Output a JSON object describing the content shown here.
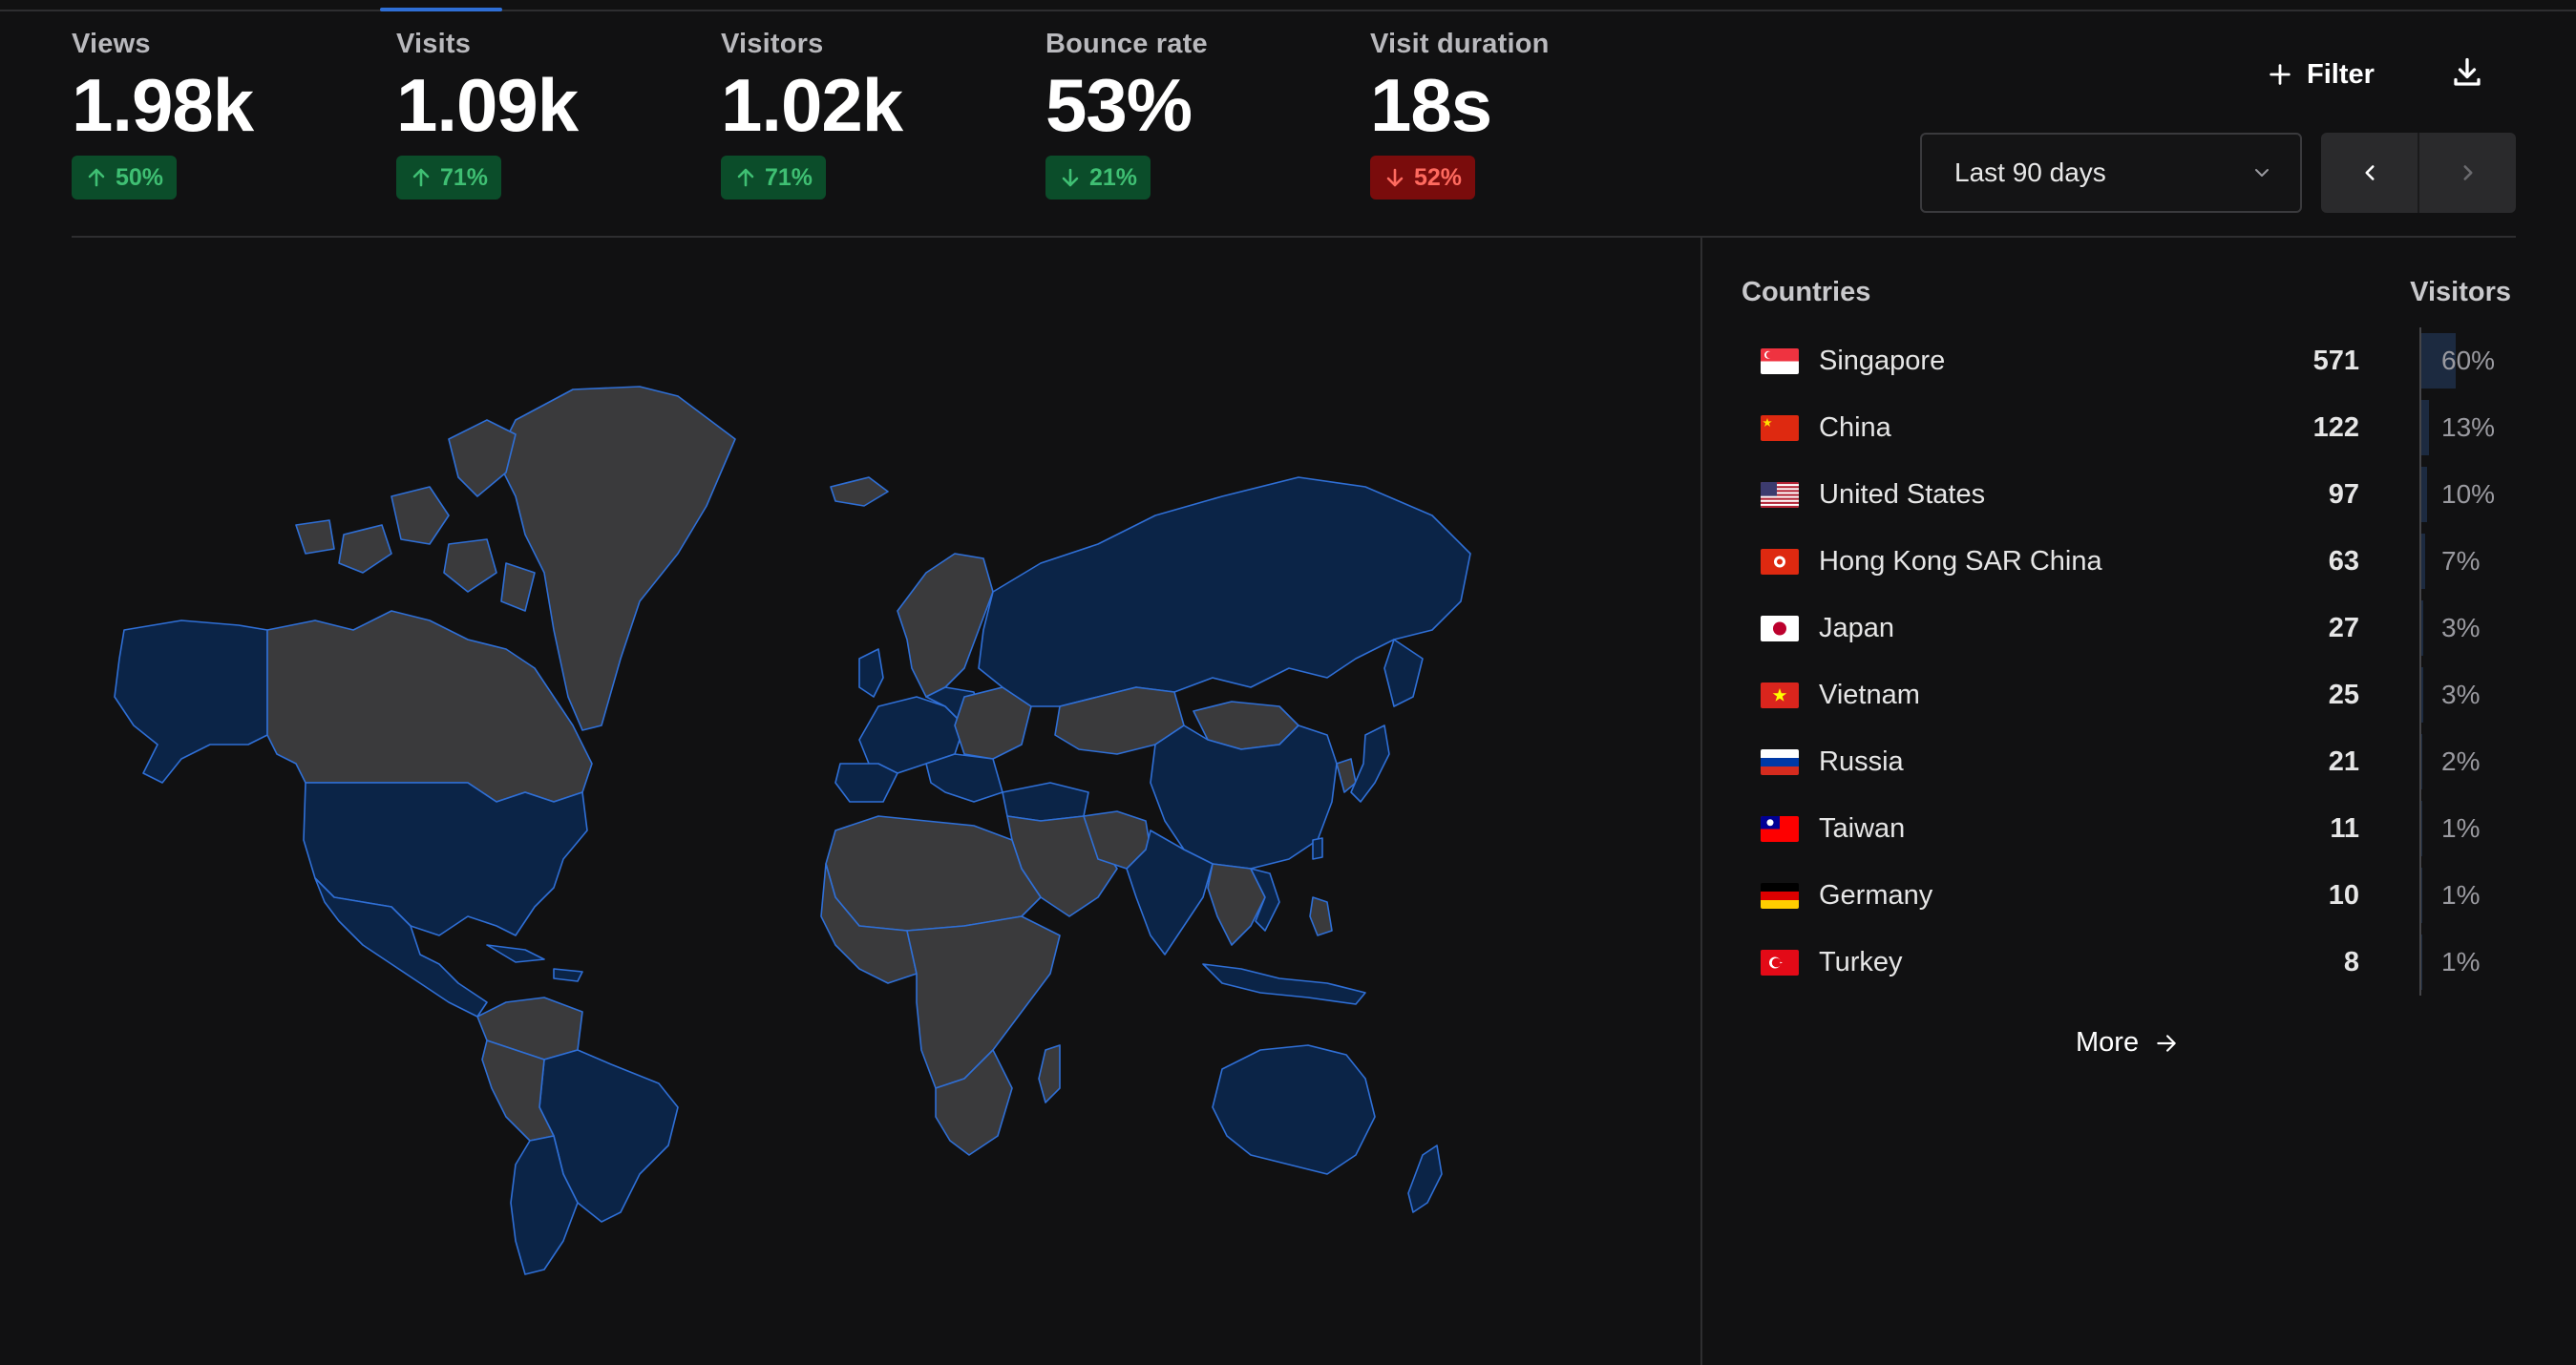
{
  "metrics": [
    {
      "label": "Views",
      "value": "1.98k",
      "change": "50%",
      "direction": "up"
    },
    {
      "label": "Visits",
      "value": "1.09k",
      "change": "71%",
      "direction": "up"
    },
    {
      "label": "Visitors",
      "value": "1.02k",
      "change": "71%",
      "direction": "up"
    },
    {
      "label": "Bounce rate",
      "value": "53%",
      "change": "21%",
      "direction": "down-good"
    },
    {
      "label": "Visit duration",
      "value": "18s",
      "change": "52%",
      "direction": "down-bad"
    }
  ],
  "toolbar": {
    "filter_label": "Filter",
    "date_range": "Last 90 days",
    "download_icon": "download-icon",
    "prev_icon": "chevron-left-icon",
    "next_icon": "chevron-right-icon"
  },
  "countries_panel": {
    "title": "Countries",
    "column": "Visitors",
    "rows": [
      {
        "name": "Singapore",
        "count": "571",
        "pct": "60%",
        "fraction": 0.6,
        "flag": "sg"
      },
      {
        "name": "China",
        "count": "122",
        "pct": "13%",
        "fraction": 0.13,
        "flag": "cn"
      },
      {
        "name": "United States",
        "count": "97",
        "pct": "10%",
        "fraction": 0.1,
        "flag": "us"
      },
      {
        "name": "Hong Kong SAR China",
        "count": "63",
        "pct": "7%",
        "fraction": 0.07,
        "flag": "hk"
      },
      {
        "name": "Japan",
        "count": "27",
        "pct": "3%",
        "fraction": 0.03,
        "flag": "jp"
      },
      {
        "name": "Vietnam",
        "count": "25",
        "pct": "3%",
        "fraction": 0.03,
        "flag": "vn"
      },
      {
        "name": "Russia",
        "count": "21",
        "pct": "2%",
        "fraction": 0.02,
        "flag": "ru"
      },
      {
        "name": "Taiwan",
        "count": "11",
        "pct": "1%",
        "fraction": 0.01,
        "flag": "tw"
      },
      {
        "name": "Germany",
        "count": "10",
        "pct": "1%",
        "fraction": 0.01,
        "flag": "de"
      },
      {
        "name": "Turkey",
        "count": "8",
        "pct": "1%",
        "fraction": 0.01,
        "flag": "tr"
      }
    ],
    "more_label": "More"
  },
  "colors": {
    "accent": "#2f6fd6",
    "visited_fill": "#0b2447",
    "unvisited_fill": "#3a3a3c",
    "map_stroke": "#2f6fd6",
    "up_bg": "#0b4d2a",
    "up_text": "#3fbf73",
    "down_bad_bg": "#7a0c0c",
    "down_bad_text": "#ff6a5f"
  }
}
